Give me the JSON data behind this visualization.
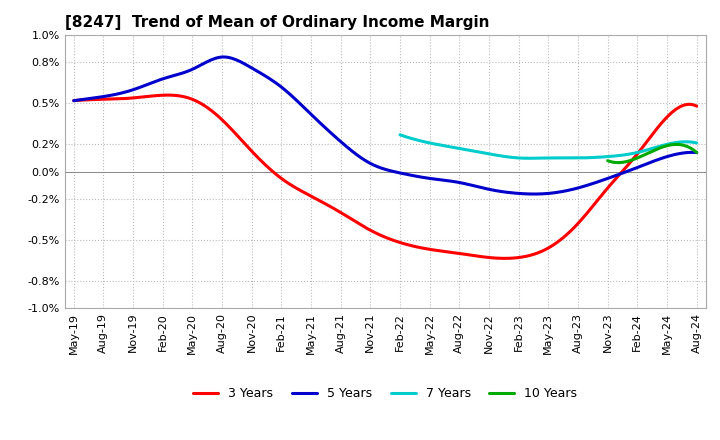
{
  "title": "[8247]  Trend of Mean of Ordinary Income Margin",
  "ylim": [
    -1.0,
    1.0
  ],
  "yticks": [
    1.0,
    0.8,
    0.5,
    0.2,
    0.0,
    -0.2,
    -0.5,
    -0.8,
    -1.0
  ],
  "ytick_labels": [
    "1.0%",
    "0.8%",
    "0.5%",
    "0.2%",
    "0.0%",
    "-0.2%",
    "-0.5%",
    "-0.8%",
    "-1.0%"
  ],
  "xlabel_dates": [
    "May-19",
    "Aug-19",
    "Nov-19",
    "Feb-20",
    "May-20",
    "Aug-20",
    "Nov-20",
    "Feb-21",
    "May-21",
    "Aug-21",
    "Nov-21",
    "Feb-22",
    "May-22",
    "Aug-22",
    "Nov-22",
    "Feb-23",
    "May-23",
    "Aug-23",
    "Nov-23",
    "Feb-24",
    "May-24",
    "Aug-24"
  ],
  "series": {
    "3 Years": {
      "color": "#FF0000",
      "data_x": [
        0,
        1,
        2,
        3,
        4,
        5,
        6,
        7,
        8,
        9,
        10,
        11,
        12,
        13,
        14,
        15,
        16,
        17,
        18,
        19,
        20,
        21
      ],
      "data_y": [
        0.52,
        0.53,
        0.54,
        0.56,
        0.53,
        0.38,
        0.15,
        -0.05,
        -0.18,
        -0.3,
        -0.43,
        -0.52,
        -0.57,
        -0.6,
        -0.63,
        -0.63,
        -0.56,
        -0.38,
        -0.12,
        0.13,
        0.4,
        0.48
      ]
    },
    "5 Years": {
      "color": "#0000CC",
      "data_x": [
        0,
        1,
        2,
        3,
        4,
        5,
        6,
        7,
        8,
        9,
        10,
        11,
        12,
        13,
        14,
        15,
        16,
        17,
        18,
        19,
        20,
        21
      ],
      "data_y": [
        0.52,
        0.55,
        0.6,
        0.68,
        0.75,
        0.84,
        0.76,
        0.62,
        0.42,
        0.22,
        0.06,
        -0.01,
        -0.05,
        -0.08,
        -0.13,
        -0.16,
        -0.16,
        -0.12,
        -0.05,
        0.03,
        0.11,
        0.14
      ]
    },
    "7 Years": {
      "color": "#00CCCC",
      "data_x": [
        11,
        12,
        13,
        14,
        15,
        16,
        17,
        18,
        19,
        20,
        21
      ],
      "data_y": [
        0.27,
        0.21,
        0.17,
        0.13,
        0.1,
        0.1,
        0.1,
        0.11,
        0.14,
        0.2,
        0.21
      ]
    },
    "10 Years": {
      "color": "#00AA00",
      "data_x": [
        18,
        19,
        20,
        21
      ],
      "data_y": [
        0.08,
        0.1,
        0.19,
        0.14
      ]
    }
  },
  "background_color": "#FFFFFF",
  "plot_bg_color": "#FFFFFF",
  "grid_color": "#BBBBBB",
  "title_fontsize": 11,
  "legend_fontsize": 9,
  "tick_fontsize": 8,
  "linewidth": 2.2
}
